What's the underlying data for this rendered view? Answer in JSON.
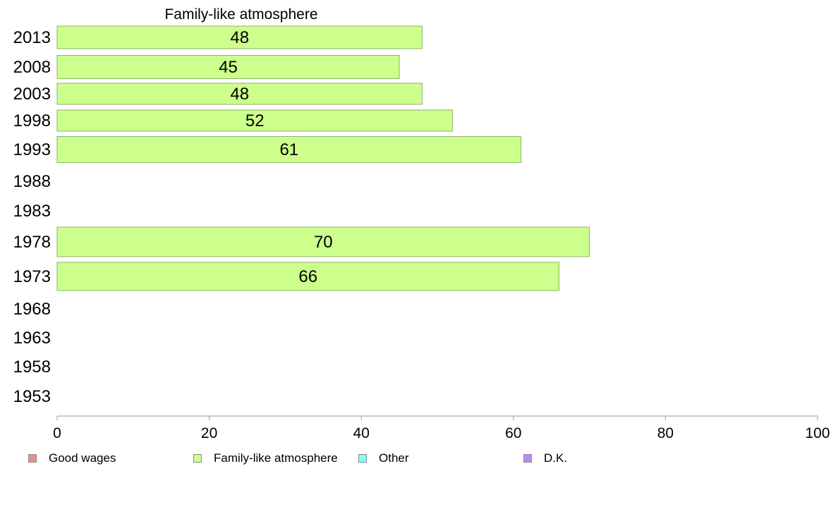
{
  "chart_data": {
    "type": "bar",
    "orientation": "horizontal",
    "title": "Family-like atmosphere",
    "categories": [
      "2013",
      "2008",
      "2003",
      "1998",
      "1993",
      "1988",
      "1983",
      "1978",
      "1973",
      "1968",
      "1963",
      "1958",
      "1953"
    ],
    "series": [
      {
        "name": "Family-like atmosphere",
        "values": [
          48,
          45,
          48,
          52,
          61,
          null,
          null,
          70,
          66,
          null,
          null,
          null,
          null
        ]
      }
    ],
    "xlim": [
      0,
      100
    ],
    "xticks": [
      0,
      20,
      40,
      60,
      80,
      100
    ],
    "grid": false,
    "legend_position": "bottom",
    "legend": [
      {
        "label": "Good wages",
        "color": "#f28b8b"
      },
      {
        "label": "Family-like atmosphere",
        "color": "#ccff8c"
      },
      {
        "label": "Other",
        "color": "#80ffff"
      },
      {
        "label": "D.K.",
        "color": "#bb88ff"
      }
    ],
    "bar_color": "#ccff8c",
    "bar_border_color": "#8fb070"
  }
}
